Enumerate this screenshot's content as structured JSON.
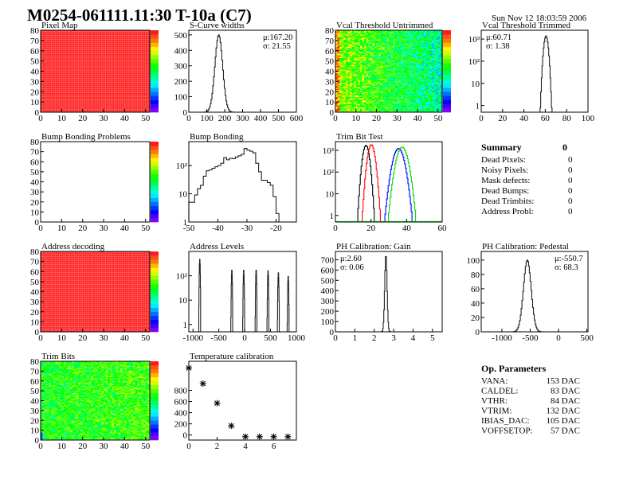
{
  "header": {
    "title": "M0254-061111.11:30 T-10a (C7)",
    "datetime": "Sun Nov 12 18:03:59 2006"
  },
  "summary": {
    "title": "Summary",
    "total": "0",
    "rows": [
      {
        "label": "Dead Pixels:",
        "value": "0"
      },
      {
        "label": "Noisy Pixels:",
        "value": "0"
      },
      {
        "label": "Mask defects:",
        "value": "0"
      },
      {
        "label": "Dead Bumps:",
        "value": "0"
      },
      {
        "label": "Dead Trimbits:",
        "value": "0"
      },
      {
        "label": "Address Probl:",
        "value": "0"
      }
    ]
  },
  "op_parameters": {
    "title": "Op. Parameters",
    "rows": [
      {
        "label": "VANA:",
        "value": "153 DAC"
      },
      {
        "label": "CALDEL:",
        "value": "83 DAC"
      },
      {
        "label": "VTHR:",
        "value": "84 DAC"
      },
      {
        "label": "VTRIM:",
        "value": "132 DAC"
      },
      {
        "label": "IBIAS_DAC:",
        "value": "105 DAC"
      },
      {
        "label": "VOFFSETOP:",
        "value": "57 DAC"
      }
    ]
  },
  "chart_data": [
    {
      "id": "pixel-map",
      "type": "heatmap",
      "title": "Pixel Map",
      "xlim": [
        0,
        52
      ],
      "ylim": [
        0,
        80
      ],
      "xticks": [
        0,
        10,
        20,
        30,
        40,
        50
      ],
      "yticks": [
        0,
        10,
        20,
        30,
        40,
        50,
        60,
        70,
        80
      ],
      "fill": "uniform-max",
      "colors": {
        "cell": "#ff2020",
        "grid": "#ff6a6a"
      }
    },
    {
      "id": "s-curve-widths",
      "type": "histogram",
      "title": "S-Curve widths",
      "xlim": [
        0,
        600
      ],
      "ylim": [
        0,
        530
      ],
      "xticks": [
        0,
        100,
        200,
        300,
        400,
        500,
        600
      ],
      "yticks": [
        0,
        100,
        200,
        300,
        400,
        500
      ],
      "gauss": {
        "mean": 167.2,
        "sigma": 21.55,
        "peak": 500
      },
      "stats": [
        "μ:167.20",
        "σ: 21.55"
      ],
      "stats_pos": "top-right"
    },
    {
      "id": "vcal-threshold-untrimmed",
      "type": "heatmap",
      "title": "Vcal Threshold Untrimmed",
      "xlim": [
        0,
        52
      ],
      "ylim": [
        0,
        80
      ],
      "xticks": [
        0,
        10,
        20,
        30,
        40,
        50
      ],
      "yticks": [
        0,
        10,
        20,
        30,
        40,
        50,
        60,
        70,
        80
      ],
      "zlim": [
        88,
        128
      ],
      "fill": "gradient-left-high"
    },
    {
      "id": "vcal-threshold-trimmed",
      "type": "histogram",
      "title": "Vcal Threshold Trimmed",
      "xlim": [
        0,
        100
      ],
      "ylim": [
        0.5,
        2500
      ],
      "log": true,
      "xticks": [
        0,
        20,
        40,
        60,
        80,
        100
      ],
      "yticks": [
        1,
        10,
        100,
        1000
      ],
      "gauss": {
        "mean": 60.71,
        "sigma": 1.38,
        "peak": 1400
      },
      "stats": [
        "μ:60.71",
        "σ: 1.38"
      ],
      "stats_pos": "top-left"
    },
    {
      "id": "bump-bonding-problems",
      "type": "heatmap",
      "title": "Bump Bonding Problems",
      "xlim": [
        0,
        52
      ],
      "ylim": [
        0,
        80
      ],
      "xticks": [
        0,
        10,
        20,
        30,
        40,
        50
      ],
      "yticks": [
        0,
        10,
        20,
        30,
        40,
        50,
        60,
        70,
        80
      ],
      "fill": "empty"
    },
    {
      "id": "bump-bonding",
      "type": "histogram",
      "title": "Bump Bonding",
      "xlim": [
        -50,
        -13
      ],
      "ylim": [
        1,
        700
      ],
      "log": true,
      "xticks": [
        -50,
        -40,
        -30,
        -20
      ],
      "yticks": [
        1,
        10,
        100
      ],
      "bins": {
        "start": -50,
        "width": 1,
        "values": [
          5,
          5,
          9,
          15,
          20,
          42,
          65,
          70,
          80,
          90,
          100,
          120,
          190,
          160,
          180,
          175,
          200,
          220,
          250,
          400,
          350,
          320,
          280,
          120,
          60,
          30,
          30,
          25,
          20,
          8,
          2,
          0.5
        ]
      }
    },
    {
      "id": "trim-bit-test",
      "type": "histogram",
      "title": "Trim Bit Test",
      "xlim": [
        0,
        60
      ],
      "ylim": [
        0.5,
        2500
      ],
      "log": true,
      "xticks": [
        0,
        20,
        40,
        60
      ],
      "yticks": [
        1,
        10,
        100,
        1000
      ],
      "series": [
        {
          "color": "#000000",
          "gauss": {
            "mean": 17.2,
            "sigma": 1.2,
            "peak": 1700
          }
        },
        {
          "color": "#ff0000",
          "gauss": {
            "mean": 20.2,
            "sigma": 1.3,
            "peak": 1800
          }
        },
        {
          "color": "#0000ff",
          "gauss": {
            "mean": 35.5,
            "sigma": 2.0,
            "peak": 1200
          }
        },
        {
          "color": "#00dd00",
          "gauss": {
            "mean": 37.5,
            "sigma": 2.0,
            "peak": 1400
          }
        }
      ]
    },
    {
      "id": "address-decoding",
      "type": "heatmap",
      "title": "Address decoding",
      "xlim": [
        0,
        52
      ],
      "ylim": [
        0,
        80
      ],
      "xticks": [
        0,
        10,
        20,
        30,
        40,
        50
      ],
      "yticks": [
        0,
        10,
        20,
        30,
        40,
        50,
        60,
        70,
        80
      ],
      "fill": "uniform-max",
      "colors": {
        "cell": "#ff2020",
        "grid": "#ff6a6a"
      }
    },
    {
      "id": "address-levels",
      "type": "histogram",
      "title": "Address Levels",
      "xlim": [
        -1080,
        1000
      ],
      "ylim": [
        0.5,
        1000
      ],
      "log": true,
      "xticks": [
        -1000,
        -500,
        0,
        500,
        1000
      ],
      "yticks": [
        1,
        10,
        100
      ],
      "peaks": [
        {
          "x": -870,
          "y": 500
        },
        {
          "x": -250,
          "y": 180
        },
        {
          "x": -20,
          "y": 180
        },
        {
          "x": 220,
          "y": 180
        },
        {
          "x": 450,
          "y": 170
        },
        {
          "x": 650,
          "y": 140
        },
        {
          "x": 840,
          "y": 100
        }
      ]
    },
    {
      "id": "ph-calibration-gain",
      "type": "histogram",
      "title": "PH Calibration: Gain",
      "xlim": [
        0,
        5.5
      ],
      "ylim": [
        0,
        780
      ],
      "xticks": [
        0,
        1,
        2,
        3,
        4,
        5
      ],
      "yticks": [
        0,
        100,
        200,
        300,
        400,
        500,
        600,
        700
      ],
      "gauss": {
        "mean": 2.6,
        "sigma": 0.06,
        "peak": 750
      },
      "stats": [
        "μ:2.60",
        "σ: 0.06"
      ],
      "stats_pos": "top-left"
    },
    {
      "id": "ph-calibration-pedestal",
      "type": "histogram",
      "title": "PH Calibration: Pedestal",
      "xlim": [
        -1365,
        520
      ],
      "ylim": [
        0,
        112
      ],
      "xticks": [
        -1000,
        -500,
        0,
        500
      ],
      "yticks": [
        0,
        20,
        40,
        60,
        80,
        100
      ],
      "gauss": {
        "mean": -550.7,
        "sigma": 68.3,
        "peak": 100
      },
      "stats": [
        "μ:-550.7",
        "σ: 68.3"
      ],
      "stats_pos": "top-right"
    },
    {
      "id": "trim-bits",
      "type": "heatmap",
      "title": "Trim Bits",
      "xlim": [
        0,
        52
      ],
      "ylim": [
        0,
        80
      ],
      "xticks": [
        0,
        10,
        20,
        30,
        40,
        50
      ],
      "yticks": [
        0,
        10,
        20,
        30,
        40,
        50,
        60,
        70,
        80
      ],
      "zlim": [
        0,
        16
      ],
      "fill": "noise-mid"
    },
    {
      "id": "temperature-calibration",
      "type": "scatter",
      "title": "Temperature calibration",
      "xlim": [
        0,
        7.6
      ],
      "ylim": [
        -90,
        1320
      ],
      "xticks": [
        0,
        2,
        4,
        6
      ],
      "yticks": [
        0,
        200,
        400,
        600,
        800
      ],
      "points": [
        [
          0,
          1200
        ],
        [
          1,
          920
        ],
        [
          2,
          570
        ],
        [
          3,
          165
        ],
        [
          4,
          -30
        ],
        [
          5,
          -30
        ],
        [
          6,
          -30
        ],
        [
          7,
          -30
        ]
      ]
    }
  ]
}
